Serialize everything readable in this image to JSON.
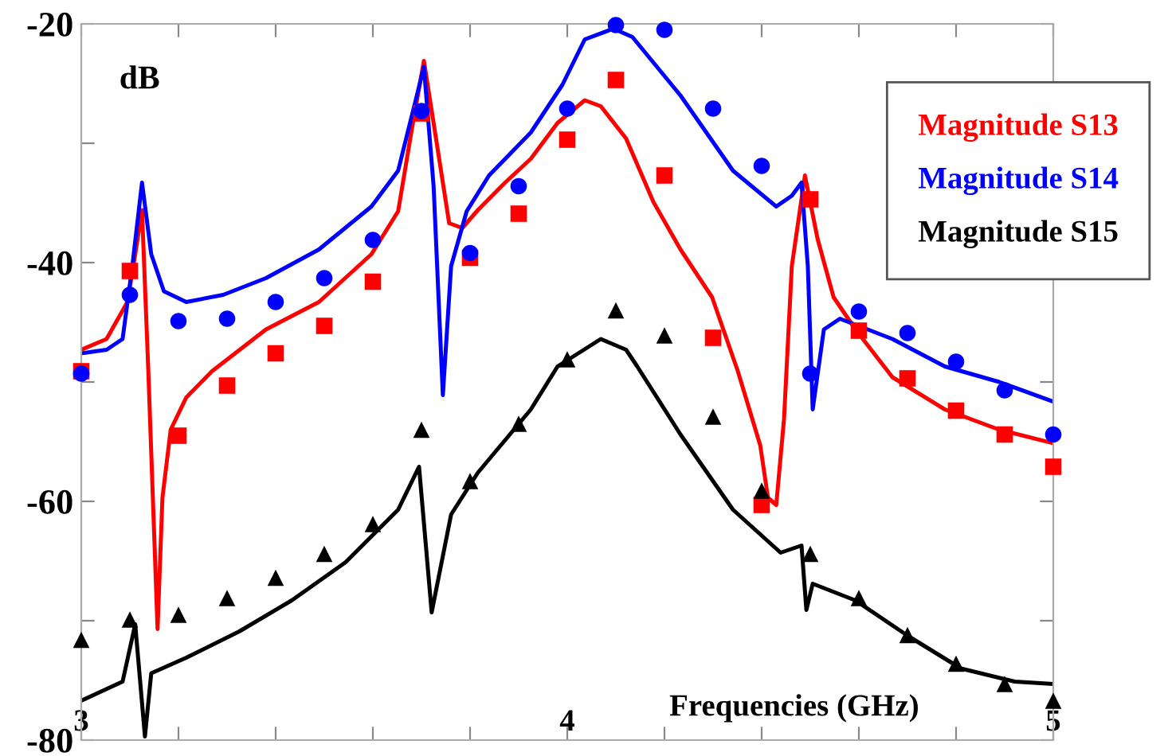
{
  "chart_data": {
    "type": "line",
    "ylabel": "dB",
    "xlabel": "Frequencies (GHz)",
    "xlim": [
      3,
      5
    ],
    "ylim": [
      -80,
      -20
    ],
    "xticks": [
      3,
      {
        "value": 3.2,
        "label": null
      },
      {
        "value": 3.4,
        "label": null
      },
      {
        "value": 3.6,
        "label": null
      },
      {
        "value": 3.8,
        "label": null
      },
      4,
      {
        "value": 4.2,
        "label": null
      },
      {
        "value": 4.4,
        "label": null
      },
      {
        "value": 4.6,
        "label": null
      },
      {
        "value": 4.8,
        "label": null
      },
      5
    ],
    "yticks": [
      -80,
      {
        "value": -70,
        "label": null
      },
      -60,
      {
        "value": -50,
        "label": null
      },
      -40,
      {
        "value": -30,
        "label": null
      },
      -20
    ],
    "grid": false,
    "legend": "top right",
    "series": [
      {
        "name": "Magnitude S13",
        "color": "#ff0000",
        "line_style": "solid",
        "marker": "none",
        "x": [
          3.0,
          3.052,
          3.095,
          3.111,
          3.125,
          3.138,
          3.157,
          3.167,
          3.184,
          3.216,
          3.269,
          3.38,
          3.489,
          3.597,
          3.652,
          3.679,
          3.705,
          3.728,
          3.757,
          3.784,
          3.816,
          3.872,
          3.925,
          3.98,
          4.036,
          4.069,
          4.121,
          4.177,
          4.233,
          4.298,
          4.351,
          4.397,
          4.413,
          4.43,
          4.446,
          4.462,
          4.489,
          4.515,
          4.548,
          4.593,
          4.669,
          4.777,
          4.889,
          4.997
        ],
        "values": [
          -47.3,
          -46.4,
          -43.3,
          -39.3,
          -35.6,
          -49.1,
          -70.7,
          -59.7,
          -54,
          -51.3,
          -49.1,
          -45.6,
          -43.3,
          -39.3,
          -35.7,
          -29.1,
          -23.1,
          -29.1,
          -36.7,
          -37.1,
          -35.6,
          -33.3,
          -31.3,
          -28.3,
          -26.4,
          -26.9,
          -29.6,
          -34.9,
          -38.9,
          -42.9,
          -49.1,
          -55.3,
          -59.7,
          -60.3,
          -53.1,
          -40.3,
          -32.7,
          -38,
          -42.9,
          -45.6,
          -49.6,
          -52.3,
          -54,
          -55.1
        ]
      },
      {
        "name": "Magnitude S14",
        "color": "#0000ff",
        "line_style": "solid",
        "marker": "none",
        "x": [
          3.0,
          3.052,
          3.085,
          3.105,
          3.125,
          3.144,
          3.17,
          3.216,
          3.292,
          3.38,
          3.489,
          3.597,
          3.652,
          3.685,
          3.705,
          3.725,
          3.744,
          3.761,
          3.793,
          3.839,
          3.925,
          3.99,
          4.036,
          4.095,
          4.134,
          4.233,
          4.341,
          4.43,
          4.462,
          4.482,
          4.495,
          4.505,
          4.528,
          4.561,
          4.669,
          4.777,
          4.889,
          4.997
        ],
        "values": [
          -47.6,
          -47.3,
          -46.4,
          -40.3,
          -33.3,
          -39.3,
          -42.4,
          -43.3,
          -42.7,
          -41.3,
          -38.9,
          -35.3,
          -32.3,
          -26.9,
          -23.6,
          -33.6,
          -51.1,
          -40.3,
          -35.7,
          -32.7,
          -29.1,
          -25.1,
          -21.3,
          -20.4,
          -21.1,
          -26,
          -32.3,
          -35.3,
          -34.4,
          -33.3,
          -40.3,
          -52.3,
          -45.6,
          -44.7,
          -46.4,
          -48.7,
          -50,
          -51.6
        ]
      },
      {
        "name": "Magnitude S15",
        "color": "#000000",
        "line_style": "solid",
        "marker": "none",
        "x": [
          3.0,
          3.085,
          3.111,
          3.131,
          3.144,
          3.216,
          3.325,
          3.433,
          3.544,
          3.652,
          3.695,
          3.721,
          3.761,
          3.816,
          3.925,
          3.98,
          4.069,
          4.121,
          4.144,
          4.233,
          4.341,
          4.439,
          4.482,
          4.492,
          4.505,
          4.593,
          4.702,
          4.81,
          4.921,
          4.997
        ],
        "values": [
          -76.7,
          -75.1,
          -70.3,
          -79.7,
          -74.4,
          -73.1,
          -70.9,
          -68.3,
          -65.1,
          -60.7,
          -57.1,
          -69.3,
          -61.1,
          -57.6,
          -52.3,
          -48.7,
          -46.4,
          -47.3,
          -48.7,
          -54.4,
          -60.7,
          -64.3,
          -63.7,
          -69.1,
          -66.9,
          -68.3,
          -71.3,
          -74,
          -75.1,
          -75.3
        ]
      },
      {
        "type": "scatter",
        "color": "#ff0000",
        "marker": "square",
        "x": [
          3.0,
          3.1,
          3.2,
          3.3,
          3.4,
          3.5,
          3.6,
          3.7,
          3.8,
          3.9,
          4.0,
          4.1,
          4.2,
          4.3,
          4.4,
          4.5,
          4.6,
          4.7,
          4.8,
          4.9,
          5.0
        ],
        "values": [
          -49.1,
          -40.7,
          -54.5,
          -50.3,
          -47.6,
          -45.3,
          -41.6,
          -27.5,
          -39.6,
          -35.9,
          -29.7,
          -24.7,
          -32.7,
          -46.3,
          -60.3,
          -34.7,
          -45.7,
          -49.7,
          -52.4,
          -54.4,
          -57.1
        ]
      },
      {
        "type": "scatter",
        "color": "#0000ff",
        "marker": "circle",
        "x": [
          3.0,
          3.1,
          3.2,
          3.3,
          3.4,
          3.5,
          3.6,
          3.7,
          3.8,
          3.9,
          4.0,
          4.1,
          4.2,
          4.3,
          4.4,
          4.5,
          4.6,
          4.7,
          4.8,
          4.9,
          5.0
        ],
        "values": [
          -49.3,
          -42.7,
          -44.9,
          -44.7,
          -43.3,
          -41.3,
          -38.1,
          -27.3,
          -39.2,
          -33.6,
          -27.1,
          -20.1,
          -20.5,
          -27.1,
          -31.9,
          -49.3,
          -44.1,
          -45.9,
          -48.3,
          -50.7,
          -54.4
        ]
      },
      {
        "type": "scatter",
        "color": "#000000",
        "marker": "triangle",
        "x": [
          3.0,
          3.1,
          3.2,
          3.3,
          3.4,
          3.5,
          3.6,
          3.7,
          3.8,
          3.9,
          4.0,
          4.1,
          4.2,
          4.3,
          4.4,
          4.5,
          4.6,
          4.7,
          4.8,
          4.9,
          5.0
        ],
        "values": [
          -71.6,
          -69.9,
          -69.5,
          -68.1,
          -66.4,
          -64.4,
          -61.9,
          -54.0,
          -58.3,
          -53.5,
          -48.1,
          -44.0,
          -46.1,
          -52.9,
          -59.1,
          -64.4,
          -68.1,
          -71.2,
          -73.6,
          -75.3,
          -76.7
        ]
      }
    ]
  }
}
